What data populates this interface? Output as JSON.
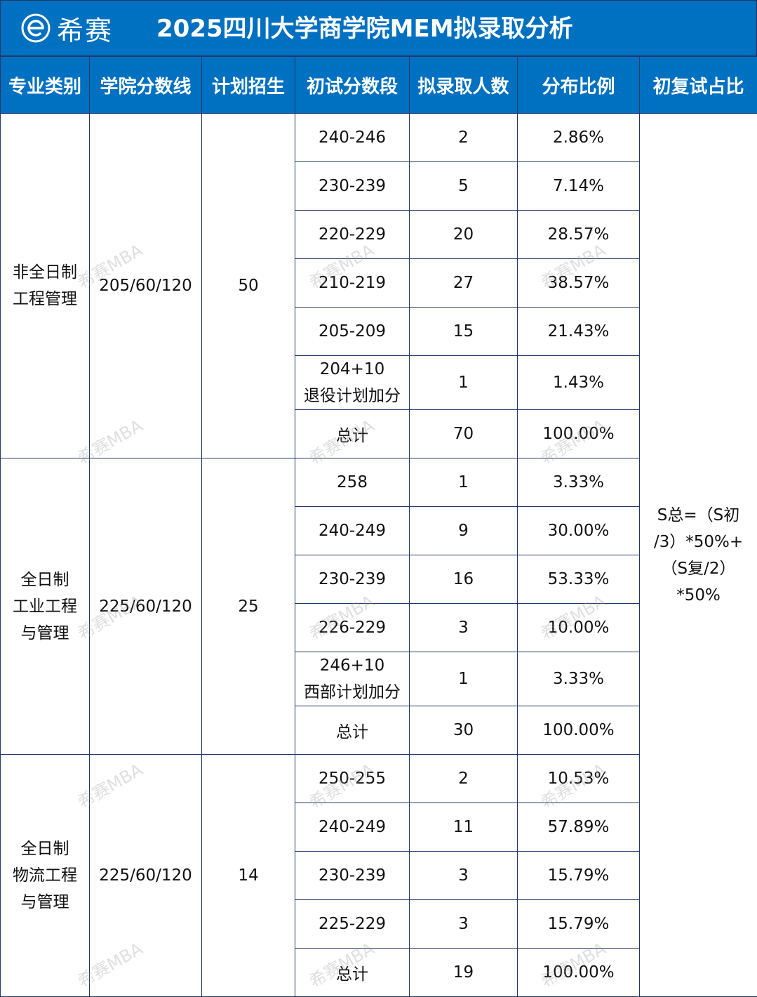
{
  "header": {
    "brand": "希赛",
    "title": "2025四川大学商学院MEM拟录取分析"
  },
  "columns": [
    "专业类别",
    "学院分数线",
    "计划招生",
    "初试分数段",
    "拟录取人数",
    "分布比例",
    "初复试占比"
  ],
  "formula": {
    "line1": "S总=（S初",
    "line2": "/3）*50%+",
    "line3": "（S复/2）",
    "line4": "*50%"
  },
  "groups": [
    {
      "category_line1": "非全日制",
      "category_line2": "工程管理",
      "category_line3": "",
      "cutoff": "205/60/120",
      "plan": "50",
      "rows": [
        {
          "range": "240-246",
          "range2": "",
          "count": "2",
          "ratio": "2.86%"
        },
        {
          "range": "230-239",
          "range2": "",
          "count": "5",
          "ratio": "7.14%"
        },
        {
          "range": "220-229",
          "range2": "",
          "count": "20",
          "ratio": "28.57%"
        },
        {
          "range": "210-219",
          "range2": "",
          "count": "27",
          "ratio": "38.57%"
        },
        {
          "range": "205-209",
          "range2": "",
          "count": "15",
          "ratio": "21.43%"
        },
        {
          "range": "204+10",
          "range2": "退役计划加分",
          "count": "1",
          "ratio": "1.43%"
        }
      ],
      "total": {
        "label": "总计",
        "count": "70",
        "ratio": "100.00%"
      }
    },
    {
      "category_line1": "全日制",
      "category_line2": "工业工程",
      "category_line3": "与管理",
      "cutoff": "225/60/120",
      "plan": "25",
      "rows": [
        {
          "range": "258",
          "range2": "",
          "count": "1",
          "ratio": "3.33%"
        },
        {
          "range": "240-249",
          "range2": "",
          "count": "9",
          "ratio": "30.00%"
        },
        {
          "range": "230-239",
          "range2": "",
          "count": "16",
          "ratio": "53.33%"
        },
        {
          "range": "226-229",
          "range2": "",
          "count": "3",
          "ratio": "10.00%"
        },
        {
          "range": "246+10",
          "range2": "西部计划加分",
          "count": "1",
          "ratio": "3.33%"
        }
      ],
      "total": {
        "label": "总计",
        "count": "30",
        "ratio": "100.00%"
      }
    },
    {
      "category_line1": "全日制",
      "category_line2": "物流工程",
      "category_line3": "与管理",
      "cutoff": "225/60/120",
      "plan": "14",
      "rows": [
        {
          "range": "250-255",
          "range2": "",
          "count": "2",
          "ratio": "10.53%"
        },
        {
          "range": "240-249",
          "range2": "",
          "count": "11",
          "ratio": "57.89%"
        },
        {
          "range": "230-239",
          "range2": "",
          "count": "3",
          "ratio": "15.79%"
        },
        {
          "range": "225-229",
          "range2": "",
          "count": "3",
          "ratio": "15.79%"
        }
      ],
      "total": {
        "label": "总计",
        "count": "19",
        "ratio": "100.00%"
      }
    }
  ],
  "watermark": "希赛MBA",
  "colors": {
    "header_bg": "#0070c0",
    "total_red": "#e00000",
    "border": "#1f3864"
  }
}
